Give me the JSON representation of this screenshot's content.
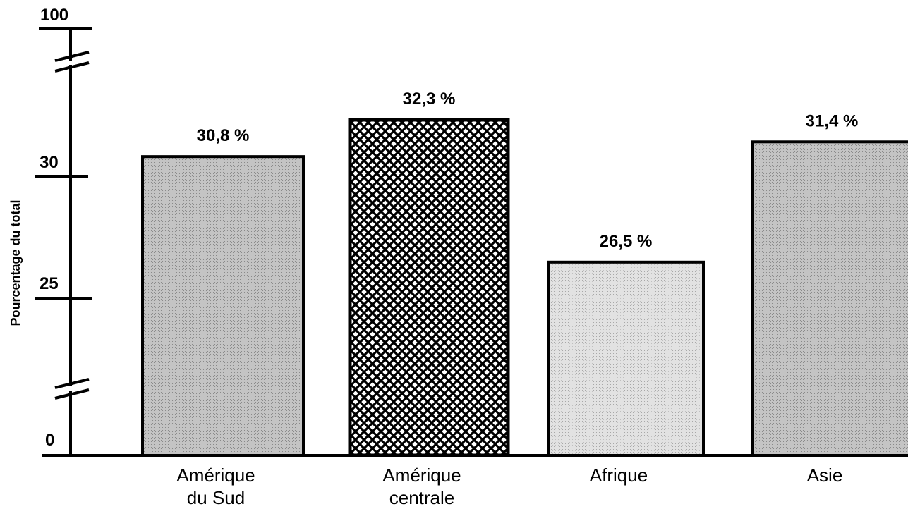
{
  "chart_data": {
    "type": "bar",
    "ylabel": "Pourcentage du total",
    "xlabel": "",
    "y_ticks": [
      "0",
      "25",
      "30",
      "100"
    ],
    "y_axis_broken": true,
    "categories": [
      [
        "Amérique",
        "du Sud"
      ],
      [
        "Amérique",
        "centrale"
      ],
      [
        "Afrique"
      ],
      [
        "Asie"
      ]
    ],
    "values": [
      30.8,
      32.3,
      26.5,
      31.4
    ],
    "value_labels": [
      "30,8 %",
      "32,3 %",
      "26,5 %",
      "31,4 %"
    ],
    "fills": [
      "stipple-medium",
      "crosshatch-dark",
      "stipple-light",
      "stipple-medium"
    ],
    "colors": {
      "ink": "#000000",
      "stipple_medium": "#b5b5b5",
      "stipple_light": "#dcdcdc",
      "background": "#ffffff"
    }
  }
}
